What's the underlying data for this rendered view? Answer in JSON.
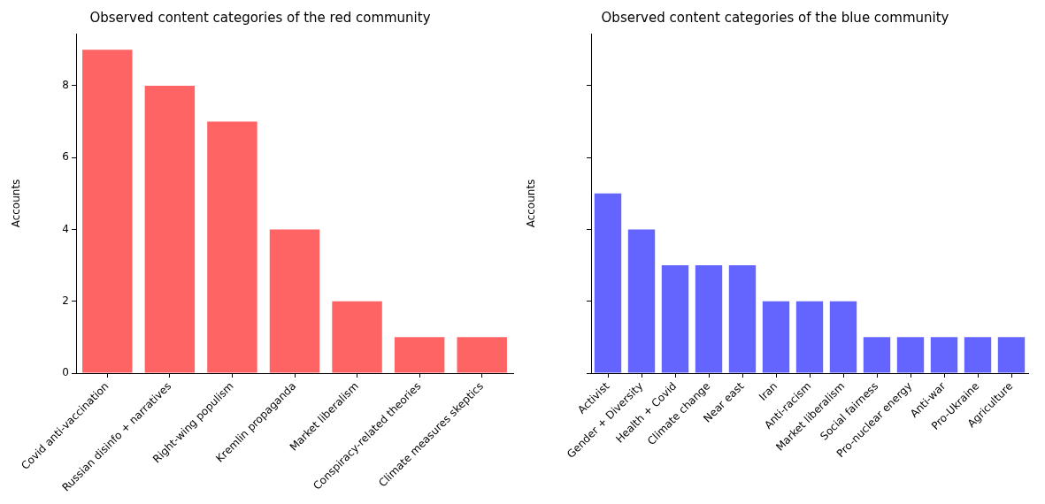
{
  "chart_data": [
    {
      "type": "bar",
      "title": "Observed content categories of the red community",
      "ylabel": "Accounts",
      "categories": [
        "Covid anti-vaccination",
        "Russian disinfo + narratives",
        "Right-wing populism",
        "Kremlin propaganda",
        "Market liberalism",
        "Conspiracy-related theories",
        "Climate measures skeptics"
      ],
      "values": [
        9,
        8,
        7,
        4,
        2,
        1,
        1
      ],
      "color": "#ff6464",
      "ylim": [
        0,
        9.45
      ],
      "yticks": [
        0,
        2,
        4,
        6,
        8
      ],
      "grid": false,
      "legend": false
    },
    {
      "type": "bar",
      "title": "Observed content categories of the blue community",
      "ylabel": "Accounts",
      "categories": [
        "Activist",
        "Gender + Diversity",
        "Health + Covid",
        "Climate change",
        "Near east",
        "Iran",
        "Anti-racism",
        "Market liberalism",
        "Social fairness",
        "Pro-nuclear energy",
        "Anti-war",
        "Pro-Ukraine",
        "Agriculture"
      ],
      "values": [
        5,
        4,
        3,
        3,
        3,
        2,
        2,
        2,
        1,
        1,
        1,
        1,
        1
      ],
      "color": "#6464ff",
      "ylim": [
        0,
        9.45
      ],
      "yticks": [
        0,
        2,
        4,
        6,
        8
      ],
      "tick_labels": "x",
      "grid": false,
      "legend": false
    }
  ]
}
